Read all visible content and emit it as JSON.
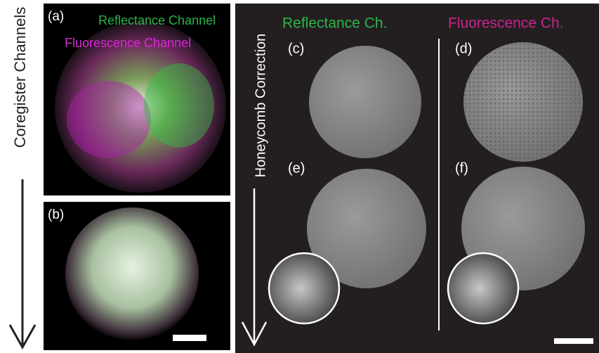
{
  "left_label": "Coregister Channels",
  "right_label": "Honeycomb Correction",
  "panel_a": {
    "label": "(a)",
    "reflectance": "Reflectance Channel",
    "fluorescence": "Fluorescence Channel"
  },
  "panel_b": {
    "label": "(b)"
  },
  "column_headers": [
    "Reflectance Ch.",
    "Fluorescence Ch."
  ],
  "panels_right": [
    "(c)",
    "(d)",
    "(e)",
    "(f)"
  ]
}
